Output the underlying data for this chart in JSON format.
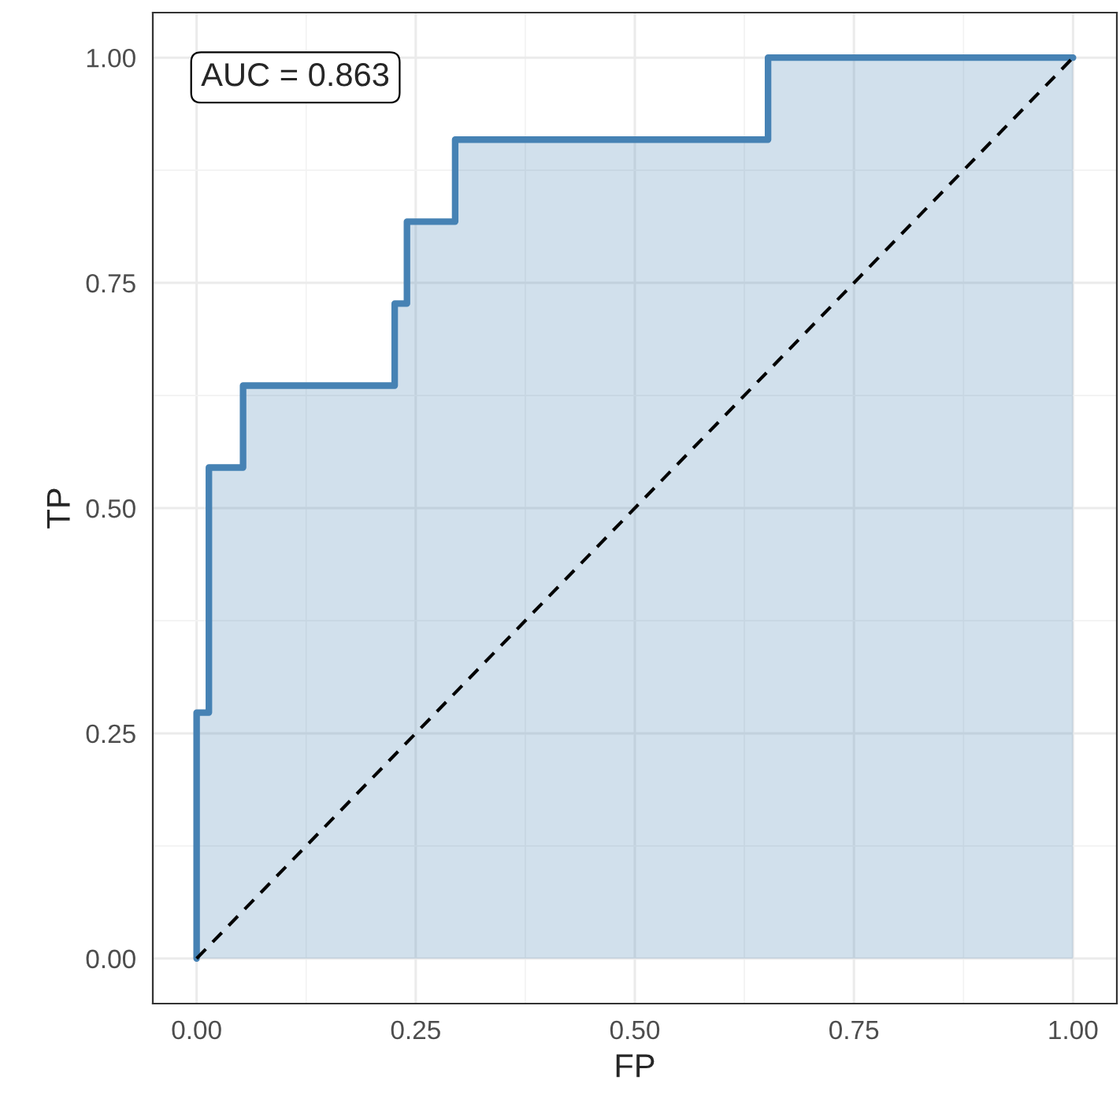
{
  "chart_data": {
    "type": "step",
    "xlabel": "FP",
    "ylabel": "TP",
    "series": [
      {
        "color": "#4682b4",
        "x": [
          0,
          0,
          0.014,
          0.053,
          0.226,
          0.24,
          0.295,
          0.652,
          1
        ],
        "values": [
          0,
          0.273,
          0.545,
          0.636,
          0.727,
          0.818,
          0.909,
          1,
          1
        ]
      },
      {
        "type": "line",
        "color": "#000000",
        "line_style": "dashed",
        "x": [
          0,
          1
        ],
        "values": [
          0,
          1
        ]
      }
    ],
    "annotations": [
      "AUC = 0.863"
    ],
    "xlim": [
      -0.05,
      1.05
    ],
    "ylim": [
      -0.05,
      1.05
    ],
    "xticks": [
      {
        "value": 0,
        "label": "0.00"
      },
      {
        "value": 0.25,
        "label": "0.25"
      },
      {
        "value": 0.5,
        "label": "0.50"
      },
      {
        "value": 0.75,
        "label": "0.75"
      },
      {
        "value": 1,
        "label": "1.00"
      }
    ],
    "yticks": [
      {
        "value": 0,
        "label": "0.00"
      },
      {
        "value": 0.25,
        "label": "0.25"
      },
      {
        "value": 0.5,
        "label": "0.50"
      },
      {
        "value": 0.75,
        "label": "0.75"
      },
      {
        "value": 1,
        "label": "1.00"
      }
    ],
    "grid": true,
    "legend": false
  }
}
